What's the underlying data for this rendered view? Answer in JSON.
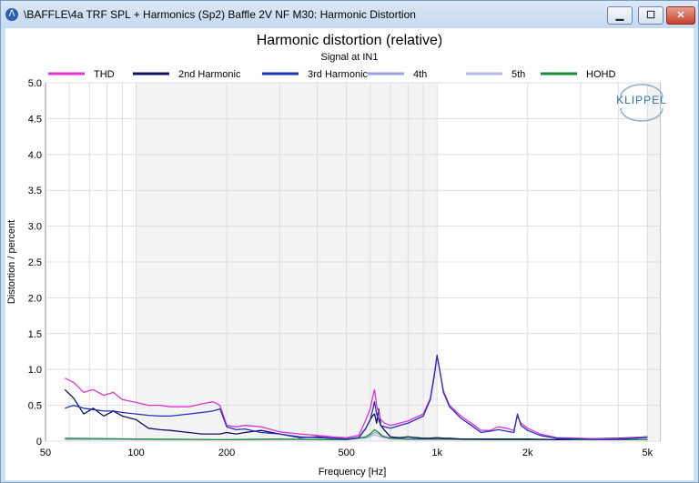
{
  "window": {
    "title": "\\BAFFLE\\4a TRF SPL + Harmonics (Sp2) Baffle 2V NF M30: Harmonic Distortion",
    "app_icon": "klippel-icon",
    "minimize_glyph": "▁",
    "maximize_glyph": "☐",
    "close_glyph": "✕"
  },
  "logo": {
    "text": "KLIPPEL"
  },
  "chart_data": {
    "type": "line",
    "title": "Harmonic distortion (relative)",
    "subtitle": "Signal at IN1",
    "xlabel": "Frequency [Hz]",
    "ylabel": "Distortion / percent",
    "xscale": "log",
    "xlim": [
      50,
      5500
    ],
    "ylim": [
      0,
      5
    ],
    "grid": true,
    "legend_position": "top",
    "x_ticks": [
      {
        "value": 50,
        "label": "50"
      },
      {
        "value": 100,
        "label": "100"
      },
      {
        "value": 200,
        "label": "200"
      },
      {
        "value": 500,
        "label": "500"
      },
      {
        "value": 1000,
        "label": "1k"
      },
      {
        "value": 2000,
        "label": "2k"
      },
      {
        "value": 5000,
        "label": "5k"
      }
    ],
    "y_ticks": [
      {
        "value": 0,
        "label": "0"
      },
      {
        "value": 0.5,
        "label": "0.5"
      },
      {
        "value": 1,
        "label": "1.0"
      },
      {
        "value": 1.5,
        "label": "1.5"
      },
      {
        "value": 2,
        "label": "2.0"
      },
      {
        "value": 2.5,
        "label": "2.5"
      },
      {
        "value": 3,
        "label": "3.0"
      },
      {
        "value": 3.5,
        "label": "3.5"
      },
      {
        "value": 4,
        "label": "4.0"
      },
      {
        "value": 4.5,
        "label": "4.5"
      },
      {
        "value": 5,
        "label": "5.0"
      }
    ],
    "series": [
      {
        "name": "THD",
        "color": "#e033d4",
        "x": [
          58,
          62,
          67,
          72,
          78,
          84,
          90,
          100,
          110,
          120,
          130,
          150,
          165,
          180,
          190,
          200,
          215,
          230,
          260,
          300,
          350,
          400,
          450,
          500,
          550,
          580,
          600,
          610,
          620,
          630,
          640,
          650,
          670,
          700,
          750,
          800,
          900,
          950,
          980,
          1000,
          1020,
          1050,
          1100,
          1200,
          1300,
          1400,
          1500,
          1600,
          1700,
          1800,
          1850,
          1900,
          2000,
          2200,
          2500,
          3000,
          3500,
          4000,
          4500,
          5000
        ],
        "y": [
          0.88,
          0.82,
          0.68,
          0.72,
          0.64,
          0.68,
          0.58,
          0.54,
          0.5,
          0.5,
          0.48,
          0.48,
          0.52,
          0.55,
          0.5,
          0.22,
          0.2,
          0.22,
          0.2,
          0.13,
          0.1,
          0.08,
          0.06,
          0.05,
          0.08,
          0.3,
          0.45,
          0.6,
          0.72,
          0.5,
          0.4,
          0.3,
          0.25,
          0.22,
          0.25,
          0.28,
          0.38,
          0.6,
          0.95,
          1.18,
          1.0,
          0.7,
          0.5,
          0.35,
          0.25,
          0.15,
          0.15,
          0.2,
          0.18,
          0.15,
          0.35,
          0.25,
          0.18,
          0.1,
          0.05,
          0.04,
          0.03,
          0.03,
          0.05,
          0.06
        ]
      },
      {
        "name": "2nd Harmonic",
        "color": "#101060",
        "x": [
          58,
          62,
          67,
          72,
          78,
          84,
          90,
          100,
          110,
          120,
          130,
          150,
          165,
          180,
          190,
          200,
          215,
          230,
          260,
          300,
          350,
          400,
          450,
          500,
          550,
          580,
          600,
          610,
          620,
          630,
          640,
          650,
          670,
          700,
          750,
          800,
          900,
          950,
          1000,
          1050,
          1100,
          1200,
          1500,
          2000,
          2500,
          3000,
          4000,
          5000
        ],
        "y": [
          0.72,
          0.6,
          0.38,
          0.46,
          0.35,
          0.42,
          0.35,
          0.3,
          0.18,
          0.16,
          0.15,
          0.12,
          0.1,
          0.1,
          0.1,
          0.12,
          0.1,
          0.12,
          0.15,
          0.1,
          0.05,
          0.06,
          0.04,
          0.03,
          0.05,
          0.18,
          0.3,
          0.35,
          0.38,
          0.25,
          0.45,
          0.22,
          0.15,
          0.06,
          0.05,
          0.06,
          0.04,
          0.04,
          0.05,
          0.04,
          0.04,
          0.03,
          0.03,
          0.03,
          0.02,
          0.03,
          0.04,
          0.06
        ]
      },
      {
        "name": "3rd Harmonic",
        "color": "#2233bb",
        "x": [
          58,
          62,
          67,
          72,
          78,
          84,
          90,
          100,
          110,
          120,
          130,
          150,
          165,
          180,
          190,
          200,
          215,
          230,
          260,
          300,
          350,
          400,
          450,
          500,
          550,
          580,
          600,
          610,
          620,
          630,
          640,
          650,
          670,
          700,
          750,
          800,
          900,
          950,
          980,
          1000,
          1020,
          1050,
          1100,
          1200,
          1300,
          1400,
          1500,
          1600,
          1700,
          1800,
          1850,
          1900,
          2000,
          2200,
          2500,
          3000,
          3500,
          4000,
          4500,
          5000
        ],
        "y": [
          0.46,
          0.5,
          0.46,
          0.44,
          0.42,
          0.42,
          0.4,
          0.38,
          0.36,
          0.35,
          0.35,
          0.38,
          0.4,
          0.42,
          0.45,
          0.2,
          0.16,
          0.17,
          0.12,
          0.1,
          0.06,
          0.05,
          0.04,
          0.03,
          0.05,
          0.18,
          0.3,
          0.42,
          0.55,
          0.38,
          0.3,
          0.22,
          0.2,
          0.18,
          0.22,
          0.25,
          0.35,
          0.58,
          0.92,
          1.2,
          1.0,
          0.68,
          0.48,
          0.32,
          0.22,
          0.12,
          0.14,
          0.16,
          0.14,
          0.12,
          0.38,
          0.22,
          0.15,
          0.08,
          0.04,
          0.03,
          0.02,
          0.02,
          0.04,
          0.05
        ]
      },
      {
        "name": "4th",
        "color": "#9aa2d8",
        "x": [
          58,
          100,
          200,
          300,
          400,
          500,
          580,
          600,
          620,
          640,
          660,
          700,
          800,
          1000,
          1500,
          2000,
          3000,
          5000
        ],
        "y": [
          0.03,
          0.03,
          0.02,
          0.03,
          0.02,
          0.02,
          0.05,
          0.08,
          0.12,
          0.1,
          0.06,
          0.04,
          0.03,
          0.03,
          0.02,
          0.02,
          0.02,
          0.02
        ]
      },
      {
        "name": "5th",
        "color": "#b4b8e6",
        "x": [
          58,
          100,
          200,
          300,
          400,
          500,
          580,
          600,
          620,
          640,
          660,
          700,
          800,
          1000,
          1500,
          2000,
          3000,
          5000
        ],
        "y": [
          0.02,
          0.02,
          0.02,
          0.02,
          0.02,
          0.02,
          0.04,
          0.06,
          0.09,
          0.07,
          0.05,
          0.03,
          0.02,
          0.02,
          0.02,
          0.02,
          0.02,
          0.02
        ]
      },
      {
        "name": "HOHD",
        "color": "#1a8a3a",
        "x": [
          58,
          100,
          200,
          300,
          400,
          500,
          580,
          600,
          620,
          640,
          660,
          700,
          800,
          1000,
          1500,
          2000,
          3000,
          5000
        ],
        "y": [
          0.04,
          0.03,
          0.02,
          0.03,
          0.02,
          0.02,
          0.06,
          0.1,
          0.16,
          0.12,
          0.07,
          0.04,
          0.03,
          0.03,
          0.02,
          0.02,
          0.02,
          0.02
        ]
      }
    ]
  }
}
